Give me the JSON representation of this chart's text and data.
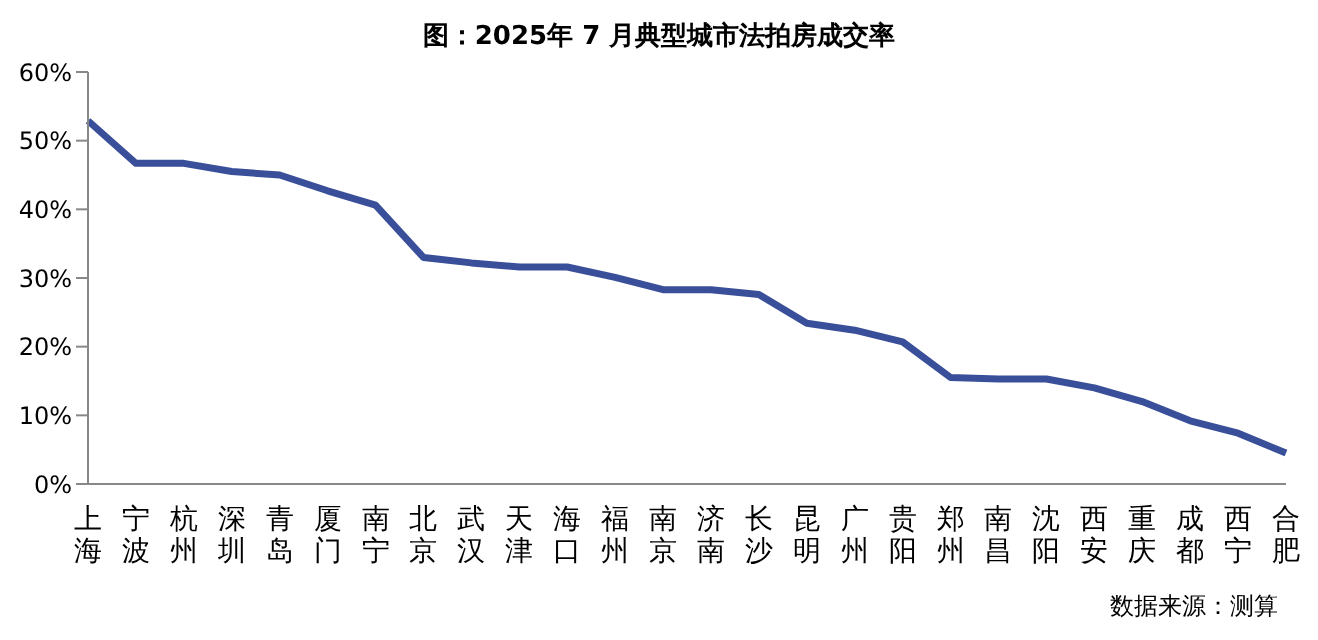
{
  "chart_data": {
    "type": "line",
    "title": "图：2025年 7 月典型城市法拍房成交率",
    "categories": [
      "上海",
      "宁波",
      "杭州",
      "深圳",
      "青岛",
      "厦门",
      "南宁",
      "北京",
      "武汉",
      "天津",
      "海口",
      "福州",
      "南京",
      "济南",
      "长沙",
      "昆明",
      "广州",
      "贵阳",
      "郑州",
      "南昌",
      "沈阳",
      "西安",
      "重庆",
      "成都",
      "西宁",
      "合肥"
    ],
    "series": [
      {
        "color": "#3a4f9a",
        "values": [
          52.9,
          46.7,
          46.7,
          45.5,
          45.0,
          42.7,
          40.6,
          33.0,
          32.2,
          31.6,
          31.6,
          30.1,
          28.3,
          28.3,
          27.6,
          23.4,
          22.4,
          20.7,
          15.5,
          15.3,
          15.3,
          14.0,
          12.0,
          9.2,
          7.4,
          4.5
        ]
      }
    ],
    "ylim": [
      0,
      60
    ],
    "yticks": [
      {
        "value": 0,
        "label": "0%"
      },
      {
        "value": 10,
        "label": "10%"
      },
      {
        "value": 20,
        "label": "20%"
      },
      {
        "value": 30,
        "label": "30%"
      },
      {
        "value": 40,
        "label": "40%"
      },
      {
        "value": 50,
        "label": "50%"
      },
      {
        "value": 60,
        "label": "60%"
      }
    ],
    "grid": false,
    "legend": false,
    "marker": "none",
    "line_style": "solid",
    "annotations": [
      "数据来源：测算"
    ]
  }
}
